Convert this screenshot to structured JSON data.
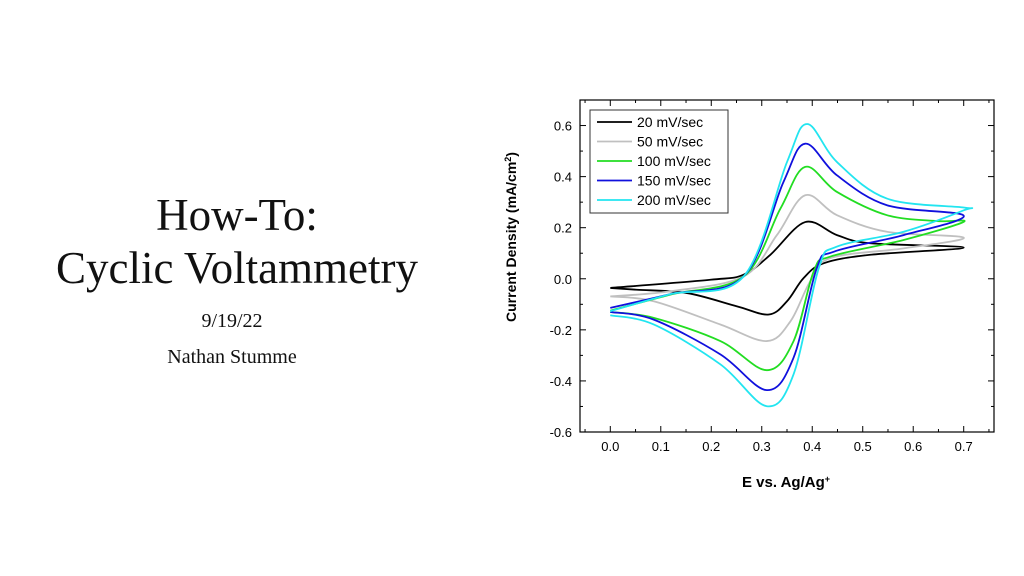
{
  "slide": {
    "title_line1": "How-To:",
    "title_line2": "Cyclic Voltammetry",
    "date": "9/19/22",
    "author": "Nathan Stumme"
  },
  "chart_data": {
    "type": "line",
    "title": "",
    "xlabel": "E vs. Ag/Ag",
    "xlabel_sup": "+",
    "ylabel": "Current Density (mA/cm",
    "ylabel_sup": "2",
    "ylabel_end": ")",
    "xlim": [
      -0.06,
      0.76
    ],
    "ylim": [
      -0.6,
      0.7
    ],
    "xticks": [
      "0.0",
      "0.1",
      "0.2",
      "0.3",
      "0.4",
      "0.5",
      "0.6",
      "0.7"
    ],
    "yticks": [
      "-0.6",
      "-0.4",
      "-0.2",
      "0.0",
      "0.2",
      "0.4",
      "0.6"
    ],
    "grid": false,
    "legend_position": "top-left",
    "series": [
      {
        "name": "20 mV/sec",
        "color": "#000000",
        "x": [
          0,
          0.198,
          0.264,
          0.317,
          0.386,
          0.449,
          0.515,
          0.7,
          0.515,
          0.423,
          0.383,
          0.35,
          0.314,
          0.251,
          0.152,
          0.053,
          0
        ],
        "y": [
          -0.036,
          -0.004,
          0.016,
          0.094,
          0.222,
          0.171,
          0.139,
          0.122,
          0.094,
          0.061,
          0.003,
          -0.088,
          -0.14,
          -0.108,
          -0.056,
          -0.043,
          -0.036
        ]
      },
      {
        "name": "50 mV/sec",
        "color": "#c0c0c0",
        "x": [
          0,
          0.119,
          0.264,
          0.33,
          0.386,
          0.449,
          0.548,
          0.7,
          0.581,
          0.436,
          0.396,
          0.357,
          0.31,
          0.218,
          0.086,
          0
        ],
        "y": [
          -0.069,
          -0.049,
          0.009,
          0.171,
          0.327,
          0.249,
          0.184,
          0.161,
          0.119,
          0.081,
          -0.01,
          -0.166,
          -0.244,
          -0.179,
          -0.088,
          -0.069
        ]
      },
      {
        "name": "100 mV/sec",
        "color": "#22dd22",
        "x": [
          0,
          0.119,
          0.264,
          0.337,
          0.386,
          0.449,
          0.548,
          0.647,
          0.7,
          0.581,
          0.436,
          0.403,
          0.363,
          0.31,
          0.218,
          0.086,
          0
        ],
        "y": [
          -0.125,
          -0.062,
          0.009,
          0.275,
          0.438,
          0.34,
          0.249,
          0.226,
          0.223,
          0.152,
          0.087,
          0.029,
          -0.244,
          -0.358,
          -0.244,
          -0.153,
          -0.13
        ]
      },
      {
        "name": "150 mV/sec",
        "color": "#1010dd",
        "x": [
          0,
          0.119,
          0.264,
          0.343,
          0.386,
          0.449,
          0.548,
          0.7,
          0.581,
          0.443,
          0.409,
          0.363,
          0.31,
          0.218,
          0.086,
          0
        ],
        "y": [
          -0.114,
          -0.06,
          0.009,
          0.379,
          0.529,
          0.405,
          0.288,
          0.247,
          0.171,
          0.106,
          0.042,
          -0.309,
          -0.436,
          -0.296,
          -0.16,
          -0.13
        ]
      },
      {
        "name": "200 mV/sec",
        "color": "#22e5f0",
        "x": [
          0,
          0.119,
          0.264,
          0.35,
          0.39,
          0.449,
          0.548,
          0.7,
          0.7,
          0.581,
          0.449,
          0.413,
          0.363,
          0.31,
          0.218,
          0.086,
          0
        ],
        "y": [
          -0.127,
          -0.06,
          0.009,
          0.457,
          0.606,
          0.457,
          0.314,
          0.279,
          0.268,
          0.184,
          0.126,
          0.042,
          -0.374,
          -0.499,
          -0.335,
          -0.179,
          -0.143
        ]
      }
    ]
  }
}
